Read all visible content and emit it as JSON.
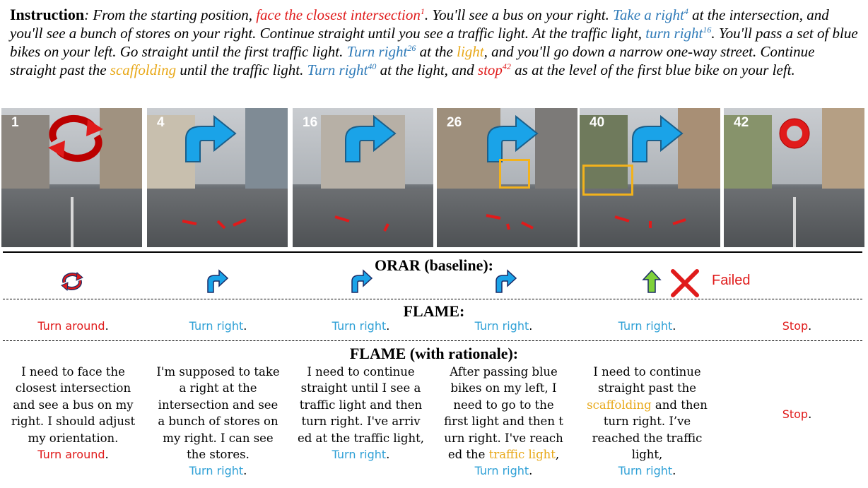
{
  "instruction": {
    "label": "Instruction",
    "segments": [
      {
        "t": ": ",
        "c": "plain"
      },
      {
        "t": "From the starting position, ",
        "c": "plain"
      },
      {
        "t": "face the closest intersection",
        "c": "red",
        "sup": "1"
      },
      {
        "t": ". You'll see a bus on your right. ",
        "c": "plain"
      },
      {
        "t": "Take a right",
        "c": "blue",
        "sup": "4"
      },
      {
        "t": " at the intersection, and you'll see a bunch of stores on your right. Continue straight until you see a traffic light. At the traffic light, ",
        "c": "plain"
      },
      {
        "t": "turn right",
        "c": "blue",
        "sup": "16"
      },
      {
        "t": ". You'll pass a set of blue bikes on your left. Go straight until the first traffic light. ",
        "c": "plain"
      },
      {
        "t": "Turn right",
        "c": "blue",
        "sup": "26"
      },
      {
        "t": " at the ",
        "c": "plain"
      },
      {
        "t": "light",
        "c": "gold"
      },
      {
        "t": ", and you'll go down a narrow one-way street. Continue straight past the ",
        "c": "plain"
      },
      {
        "t": "scaffolding",
        "c": "gold"
      },
      {
        "t": " until the traffic light. ",
        "c": "plain"
      },
      {
        "t": "Turn right",
        "c": "blue",
        "sup": "40"
      },
      {
        "t": " at the light, and ",
        "c": "plain"
      },
      {
        "t": "stop",
        "c": "red",
        "sup": "42"
      },
      {
        "t": " as at the level of the first blue bike on your left.",
        "c": "plain"
      }
    ]
  },
  "frames": [
    {
      "num": "1",
      "icon": "turn-around-icon"
    },
    {
      "num": "4",
      "icon": "turn-right-arrow-icon"
    },
    {
      "num": "16",
      "icon": "turn-right-arrow-icon"
    },
    {
      "num": "26",
      "icon": "turn-right-arrow-icon"
    },
    {
      "num": "40",
      "icon": "turn-right-arrow-icon"
    },
    {
      "num": "42",
      "icon": "stop-ring-icon"
    }
  ],
  "orar": {
    "title": "ORAR (baseline):",
    "icons": [
      "turn-around-icon",
      "turn-right-icon",
      "turn-right-icon",
      "turn-right-icon",
      "forward-arrow-icon",
      "fail-x-icon"
    ],
    "failed_label": "Failed"
  },
  "flame": {
    "title": "FLAME:",
    "actions": [
      {
        "text": "Turn around",
        "color": "red"
      },
      {
        "text": "Turn right",
        "color": "blue"
      },
      {
        "text": "Turn right",
        "color": "blue"
      },
      {
        "text": "Turn right",
        "color": "blue"
      },
      {
        "text": "Turn right",
        "color": "blue"
      },
      {
        "text": "Stop",
        "color": "red"
      }
    ]
  },
  "flame_rationale": {
    "title": "FLAME (with rationale):",
    "cells": [
      {
        "lines": [
          "I need to face the",
          "closest intersection",
          "and see a bus on my",
          "right. I should adjust",
          "my orientation."
        ],
        "action": "Turn around",
        "action_color": "red"
      },
      {
        "lines": [
          "I'm supposed to take",
          "a right at the",
          "intersection and see",
          "a bunch of stores on",
          "my right. I can see",
          "the stores."
        ],
        "action": "Turn right",
        "action_color": "blue"
      },
      {
        "lines": [
          "I need to continue",
          "straight until I see a",
          "traffic light and then",
          "turn right. I've arriv",
          "ed at the traffic light,"
        ],
        "action": "Turn right",
        "action_color": "blue"
      },
      {
        "lines": [
          "After passing blue",
          "bikes on my left, I",
          "need to go to the",
          "first light and then t",
          "urn right. I've reach"
        ],
        "extra_prefix": "ed the ",
        "extra_highlight": "traffic light",
        "extra_suffix": ",",
        "action": "Turn right",
        "action_color": "blue"
      },
      {
        "lines": [
          "I need to continue",
          "straight past the"
        ],
        "highlight_line": "scaffolding",
        "highlight_suffix": " and then",
        "more_lines": [
          "turn right. I’ve",
          "reached the traffic",
          "light,"
        ],
        "action": "Turn right",
        "action_color": "blue"
      },
      {
        "lines": [],
        "action": "Stop",
        "action_color": "red"
      }
    ]
  },
  "colors": {
    "red": "#e01b1b",
    "blue": "#2ea0d6",
    "gold": "#e8a818",
    "instr_blue": "#2e7ab8",
    "arrow_blue": "#1aa3e8"
  }
}
